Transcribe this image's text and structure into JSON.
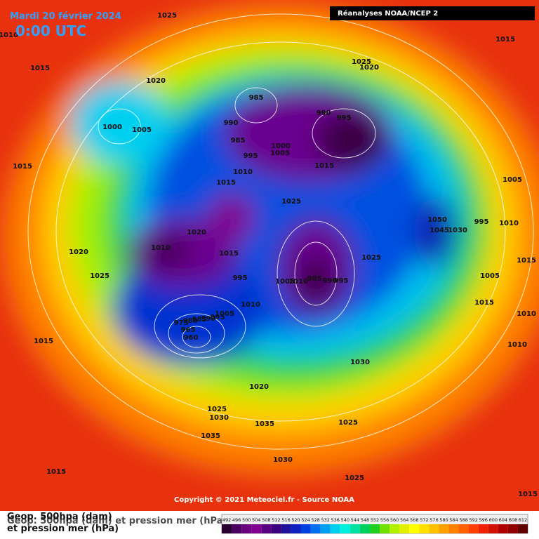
{
  "header": {
    "date": "Mardi 20 février 2024",
    "time": "0:00 UTC",
    "source": "Réanalyses NOAA/NCEP 2"
  },
  "copyright": "Copyright © 2021 Meteociel.fr - Source NOAA",
  "legend": {
    "titles": [
      "Geop. 500hpa (dam)",
      "et pression mer (hPa)",
      "Géop. 500hpa (dam) et pression mer (hPa)"
    ],
    "labels": [
      "492",
      "496",
      "500",
      "504",
      "508",
      "512",
      "516",
      "520",
      "524",
      "528",
      "532",
      "536",
      "540",
      "544",
      "548",
      "552",
      "556",
      "560",
      "564",
      "568",
      "572",
      "576",
      "580",
      "584",
      "588",
      "592",
      "596",
      "600",
      "604",
      "608",
      "612"
    ],
    "colors": [
      "#2a0030",
      "#4a0060",
      "#6a0080",
      "#800090",
      "#5a0080",
      "#3a0080",
      "#20109a",
      "#1020c0",
      "#0040e0",
      "#0070f0",
      "#00a0f0",
      "#00d0f0",
      "#00f0e0",
      "#00e0a0",
      "#00d060",
      "#20d020",
      "#70e000",
      "#b0f000",
      "#e0f000",
      "#ffff00",
      "#ffe000",
      "#ffc000",
      "#ffa000",
      "#ff8000",
      "#ff6000",
      "#ff4000",
      "#f02000",
      "#d01000",
      "#b00000",
      "#900000",
      "#600000"
    ]
  },
  "isobar_labels": [
    "1025",
    "1010",
    "1015",
    "1015",
    "1025",
    "1020",
    "1020",
    "985",
    "990",
    "995",
    "1000",
    "1005",
    "990",
    "985",
    "1000",
    "1005",
    "995",
    "1015",
    "1010",
    "1015",
    "1015",
    "1005",
    "1025",
    "1050",
    "995",
    "1010",
    "1045",
    "1030",
    "1020",
    "1010",
    "1015",
    "1020",
    "1025",
    "1015",
    "1025",
    "995",
    "985",
    "1005",
    "1010",
    "990",
    "995",
    "1005",
    "1010",
    "1005",
    "1015",
    "1010",
    "975",
    "980",
    "985",
    "990",
    "995",
    "965",
    "960",
    "1015",
    "1010",
    "1030",
    "1020",
    "1025",
    "1030",
    "1035",
    "1025",
    "1035",
    "1030",
    "1015",
    "1025",
    "1015"
  ]
}
